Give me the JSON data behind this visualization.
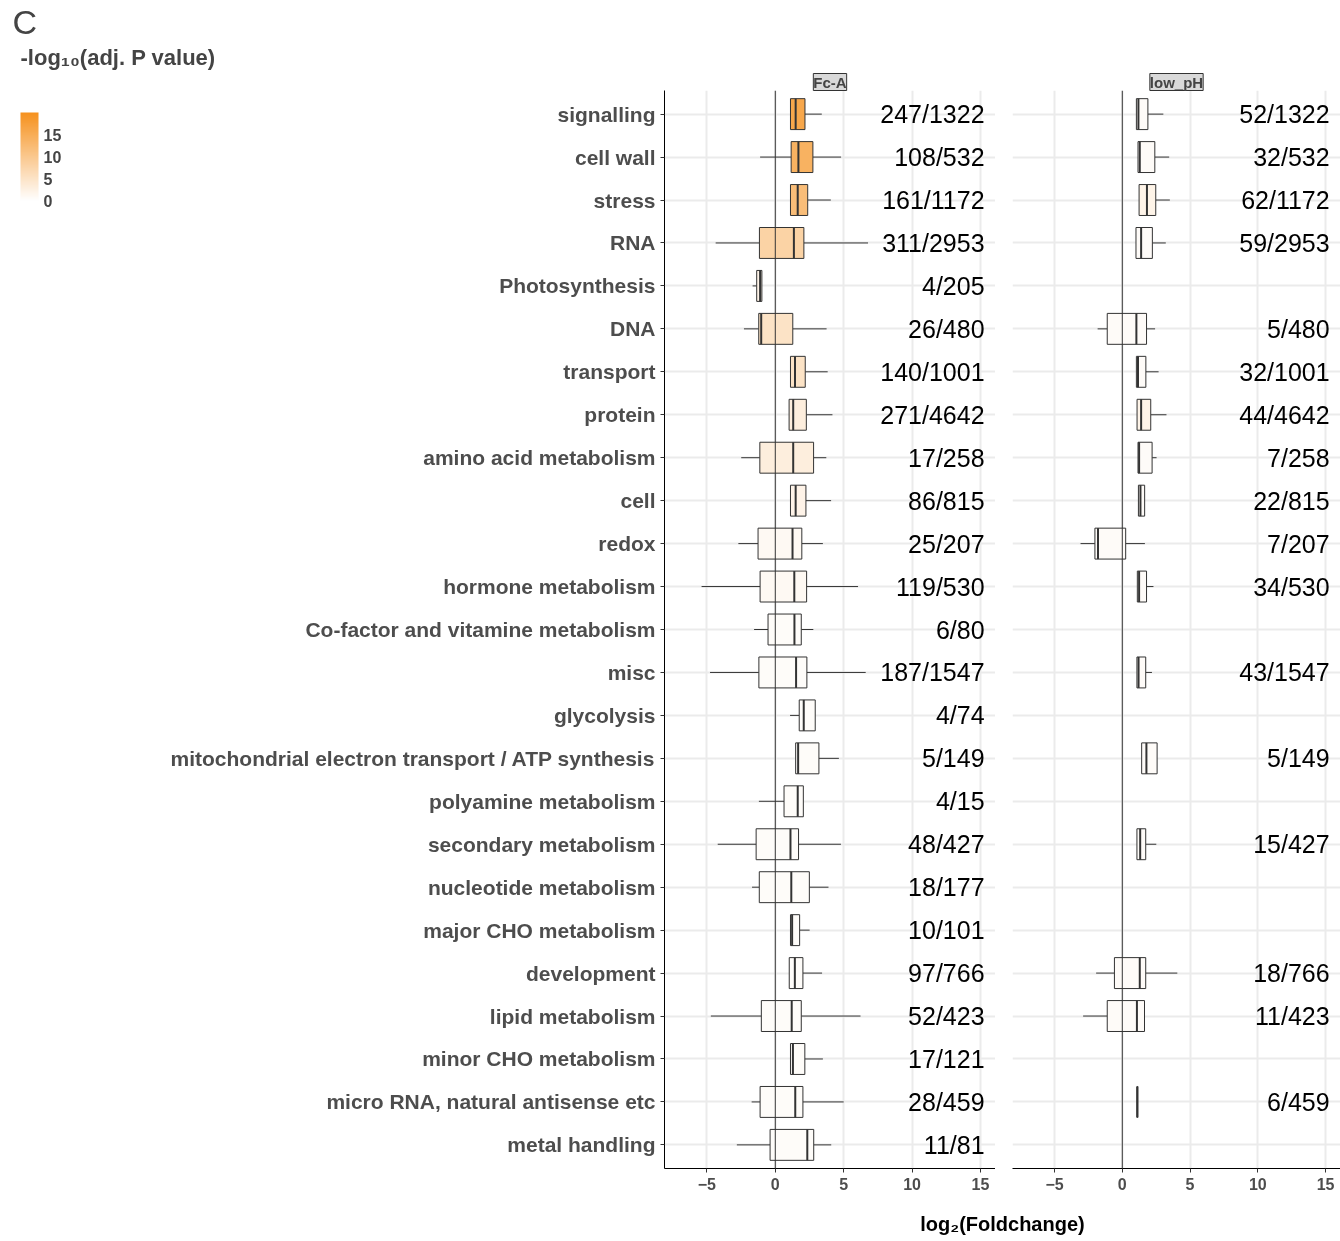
{
  "chart_data": [
    {
      "type": "box",
      "orientation": "horizontal",
      "title": "Fc-A",
      "xlabel": "log₂(Foldchange)",
      "clabel": "-log₁₀(adj. P value)",
      "clim": [
        0,
        20
      ],
      "cticks": [
        0,
        5,
        10,
        15
      ],
      "annotations": [
        "C"
      ],
      "categories": [
        "signalling",
        "cell wall",
        "stress",
        "RNA",
        "Photosynthesis",
        "DNA",
        "transport",
        "protein",
        "amino acid metabolism",
        "cell",
        "redox",
        "hormone metabolism",
        "Co-factor and vitamine metabolism",
        "misc",
        "glycolysis",
        "mitochondrial electron transport / ATP synthesis",
        "polyamine metabolism",
        "secondary metabolism",
        "nucleotide metabolism",
        "major CHO metabolism",
        "development",
        "lipid metabolism",
        "minor CHO metabolism",
        "micro RNA, natural antisense etc",
        "metal handling"
      ],
      "xlim": [
        -8.1,
        16.1
      ],
      "xticks": [
        -5,
        0,
        5,
        10,
        15
      ],
      "grid": true,
      "ref_lines": [
        {
          "axis": "x",
          "value": 0
        }
      ],
      "boxes": [
        {
          "low": 1.11,
          "q1": 1.11,
          "median": 1.49,
          "q3": 2.17,
          "high": 3.4
        },
        {
          "low": -1.11,
          "q1": 1.16,
          "median": 1.69,
          "q3": 2.75,
          "high": 4.81
        },
        {
          "low": 1.11,
          "q1": 1.11,
          "median": 1.64,
          "q3": 2.37,
          "high": 4.06
        },
        {
          "low": -4.36,
          "q1": -1.16,
          "median": 1.36,
          "q3": 2.09,
          "high": 6.78
        },
        {
          "low": -1.66,
          "q1": -1.36,
          "median": -1.11,
          "q3": -0.98,
          "high": -0.98
        },
        {
          "low": -2.29,
          "q1": -1.21,
          "median": -1.03,
          "q3": 1.28,
          "high": 3.75
        },
        {
          "low": 1.11,
          "q1": 1.11,
          "median": 1.44,
          "q3": 2.19,
          "high": 3.83
        },
        {
          "low": 1.01,
          "q1": 1.01,
          "median": 1.31,
          "q3": 2.27,
          "high": 4.18
        },
        {
          "low": -2.49,
          "q1": -1.13,
          "median": 1.31,
          "q3": 2.8,
          "high": 3.73
        },
        {
          "low": 1.11,
          "q1": 1.11,
          "median": 1.49,
          "q3": 2.24,
          "high": 4.08
        },
        {
          "low": -2.7,
          "q1": -1.26,
          "median": 1.26,
          "q3": 1.94,
          "high": 3.48
        },
        {
          "low": -5.39,
          "q1": -1.11,
          "median": 1.39,
          "q3": 2.29,
          "high": 6.05
        },
        {
          "low": -1.55,
          "q1": -0.53,
          "median": 1.4,
          "q3": 1.9,
          "high": 2.78
        },
        {
          "low": -4.77,
          "q1": -1.2,
          "median": 1.52,
          "q3": 2.31,
          "high": 6.61
        },
        {
          "low": 1.08,
          "q1": 1.75,
          "median": 2.08,
          "q3": 2.92,
          "high": 2.92
        },
        {
          "low": 1.49,
          "q1": 1.49,
          "median": 1.67,
          "q3": 3.19,
          "high": 4.65
        },
        {
          "low": -1.2,
          "q1": 0.64,
          "median": 1.64,
          "q3": 2.05,
          "high": 2.05
        },
        {
          "low": -4.21,
          "q1": -1.4,
          "median": 1.11,
          "q3": 1.7,
          "high": 4.8
        },
        {
          "low": -1.7,
          "q1": -1.17,
          "median": 1.17,
          "q3": 2.49,
          "high": 3.89
        },
        {
          "low": 1.11,
          "q1": 1.11,
          "median": 1.23,
          "q3": 1.78,
          "high": 2.51
        },
        {
          "low": 1.02,
          "q1": 1.02,
          "median": 1.43,
          "q3": 2.02,
          "high": 3.42
        },
        {
          "low": -4.71,
          "q1": -1.02,
          "median": 1.2,
          "q3": 1.9,
          "high": 6.23
        },
        {
          "low": 1.11,
          "q1": 1.11,
          "median": 1.29,
          "q3": 2.16,
          "high": 3.48
        },
        {
          "low": -1.73,
          "q1": -1.11,
          "median": 1.46,
          "q3": 2.02,
          "high": 5.0
        },
        {
          "low": -2.81,
          "q1": -0.38,
          "median": 2.34,
          "q3": 2.81,
          "high": 4.09
        }
      ],
      "cvalues": [
        16,
        14,
        12,
        8,
        2,
        5,
        5,
        3,
        3,
        2,
        1,
        1,
        0.5,
        0.5,
        0.5,
        0.5,
        0.5,
        0.5,
        0.5,
        0.5,
        0.5,
        0.5,
        0.5,
        0.5,
        0.5
      ],
      "value_labels": [
        "247/1322",
        "108/532",
        "161/1172",
        "311/2953",
        "4/205",
        "26/480",
        "140/1001",
        "271/4642",
        "17/258",
        "86/815",
        "25/207",
        "119/530",
        "6/80",
        "187/1547",
        "4/74",
        "5/149",
        "4/15",
        "48/427",
        "18/177",
        "10/101",
        "97/766",
        "52/423",
        "17/121",
        "28/459",
        "11/81"
      ]
    },
    {
      "type": "box",
      "orientation": "horizontal",
      "title": "low_pH",
      "tick_labels": "x",
      "xlim": [
        -8.1,
        16.1
      ],
      "xticks": [
        -5,
        0,
        5,
        10,
        15
      ],
      "grid": true,
      "ref_lines": [
        {
          "axis": "x",
          "value": 0
        }
      ],
      "boxes": [
        {
          "low": 1.04,
          "q1": 1.04,
          "median": 1.19,
          "q3": 1.89,
          "high": 3.03
        },
        {
          "low": 1.16,
          "q1": 1.16,
          "median": 1.29,
          "q3": 2.4,
          "high": 3.46
        },
        {
          "low": 1.24,
          "q1": 1.24,
          "median": 1.82,
          "q3": 2.47,
          "high": 3.51
        },
        {
          "low": 1.01,
          "q1": 1.01,
          "median": 1.39,
          "q3": 2.22,
          "high": 3.21
        },
        null,
        {
          "low": -1.82,
          "q1": -1.11,
          "median": 1.04,
          "q3": 1.79,
          "high": 2.42
        },
        {
          "low": 1.04,
          "q1": 1.04,
          "median": 1.16,
          "q3": 1.74,
          "high": 2.68
        },
        {
          "low": 1.09,
          "q1": 1.09,
          "median": 1.39,
          "q3": 2.1,
          "high": 3.26
        },
        {
          "low": 1.16,
          "q1": 1.16,
          "median": 1.24,
          "q3": 2.2,
          "high": 2.53
        },
        {
          "low": 1.19,
          "q1": 1.19,
          "median": 1.34,
          "q3": 1.65,
          "high": 1.65
        },
        {
          "low": -3.08,
          "q1": -2.02,
          "median": -1.79,
          "q3": 0.25,
          "high": 1.67
        },
        {
          "low": 1.11,
          "q1": 1.11,
          "median": 1.24,
          "q3": 1.79,
          "high": 2.3
        },
        null,
        {
          "low": 1.08,
          "q1": 1.08,
          "median": 1.2,
          "q3": 1.73,
          "high": 2.19
        },
        null,
        {
          "low": 1.43,
          "q1": 1.43,
          "median": 1.78,
          "q3": 2.57,
          "high": 2.57
        },
        null,
        {
          "low": 1.08,
          "q1": 1.08,
          "median": 1.32,
          "q3": 1.73,
          "high": 2.51
        },
        null,
        null,
        {
          "low": -1.93,
          "q1": -0.58,
          "median": 1.29,
          "q3": 1.73,
          "high": 4.06
        },
        {
          "low": -2.89,
          "q1": -1.11,
          "median": 1.08,
          "q3": 1.64,
          "high": 1.64
        },
        null,
        {
          "low": 1.1,
          "q1": 1.1,
          "median": 1.1,
          "q3": 1.15,
          "high": 1.15
        },
        null
      ],
      "colors": [
        "#fefbf8",
        "#fefbf8",
        "#fef4e8",
        "#fefbf8",
        null,
        "#fefbf8",
        "#fefbf8",
        "#fef4e8",
        "#fefbf8",
        "#fefbf8",
        "#fefbf8",
        "#fefbf8",
        null,
        "#fefbf8",
        null,
        "#fefbf8",
        null,
        "#fefbf8",
        null,
        null,
        "#fefbf8",
        "#fefbf8",
        null,
        "#fefbf8",
        null
      ],
      "value_labels": [
        "52/1322",
        "32/532",
        "62/1172",
        "59/2953",
        null,
        "5/480",
        "32/1001",
        "44/4642",
        "7/258",
        "22/815",
        "7/207",
        "34/530",
        null,
        "43/1547",
        null,
        "5/149",
        null,
        "15/427",
        null,
        null,
        "18/766",
        "11/423",
        null,
        "6/459",
        null
      ]
    }
  ]
}
